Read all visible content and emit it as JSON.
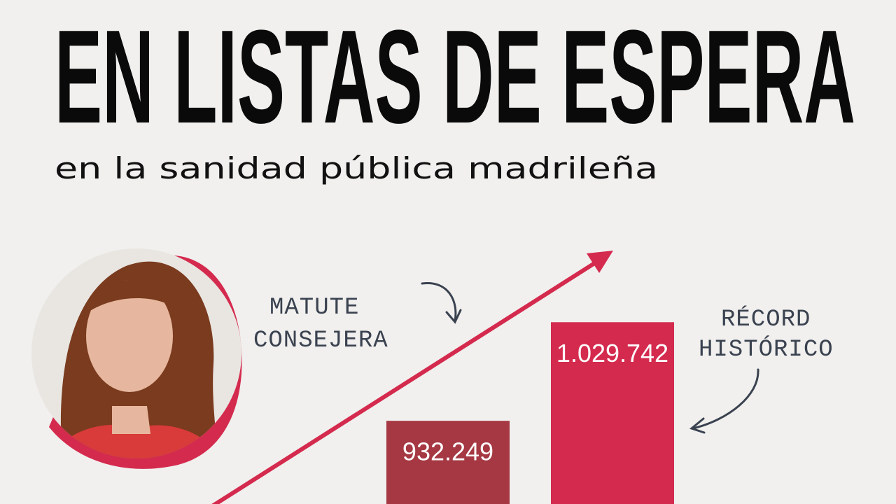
{
  "chart_data": {
    "type": "bar",
    "title": "EN LISTAS DE ESPERA",
    "subtitle": "en la sanidad pública madrileña",
    "annotations": [
      "MATUTE",
      "CONSEJERA",
      "RÉCORD",
      "HISTÓRICO"
    ],
    "categories": [
      null,
      null
    ],
    "values": [
      932249,
      1029742
    ],
    "value_labels": [
      "932.249",
      "1.029.742"
    ],
    "colors": [
      "#a53842",
      "#d42a4e"
    ],
    "ylim": [
      850000,
      1050000
    ]
  }
}
